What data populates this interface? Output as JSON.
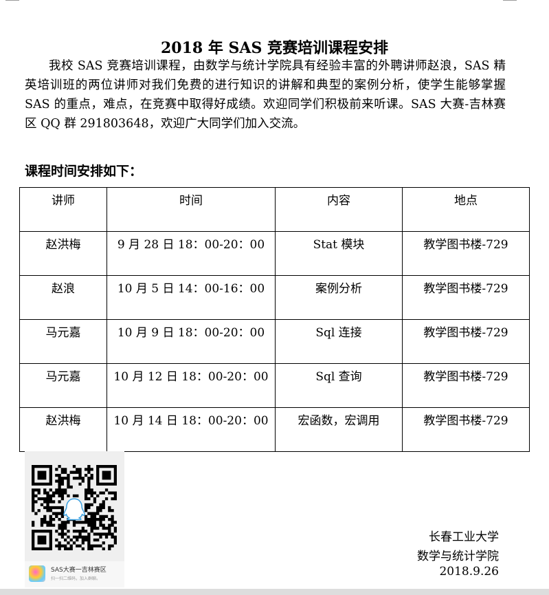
{
  "title": "2018 年 SAS 竞赛培训课程安排",
  "intro": "我校 SAS 竞赛培训课程，由数学与统计学院具有经验丰富的外聘讲师赵浪，SAS 精英培训班的两位讲师对我们免费的进行知识的讲解和典型的案例分析，使学生能够掌握 SAS 的重点，难点，在竞赛中取得好成绩。欢迎同学们积极前来听课。SAS 大赛-吉林赛区 QQ 群 291803648，欢迎广大同学们加入交流。",
  "schedule_heading": "课程时间安排如下：",
  "table": {
    "headers": [
      "讲师",
      "时间",
      "内容",
      "地点"
    ],
    "rows": [
      [
        "赵洪梅",
        "9 月 28 日 18：00-20：00",
        "Stat 模块",
        "教学图书楼-729"
      ],
      [
        "赵浪",
        "10 月 5 日 14：00-16：00",
        "案例分析",
        "教学图书楼-729"
      ],
      [
        "马元嘉",
        "10 月 9 日 18：00-20：00",
        "Sql 连接",
        "教学图书楼-729"
      ],
      [
        "马元嘉",
        "10 月 12 日 18：00-20：00",
        "Sql 查询",
        "教学图书楼-729"
      ],
      [
        "赵洪梅",
        "10 月 14 日 18：00-20：00",
        "宏函数，宏调用",
        "教学图书楼-729"
      ]
    ]
  },
  "qr": {
    "group_name": "SAS大赛一吉林赛区",
    "hint": "扫一扫二维码，加入群聊。",
    "icon": "qq-penguin-icon"
  },
  "signature": {
    "university": "长春工业大学",
    "school": "数学与统计学院",
    "date": "2018.9.26"
  }
}
